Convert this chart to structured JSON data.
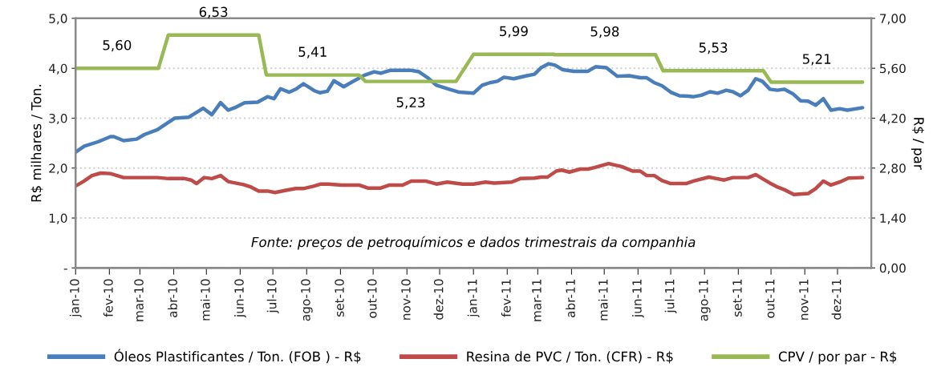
{
  "chart_data": {
    "type": "line",
    "ylabel": "R$ milhares / Ton.",
    "y2label": "R$ / par",
    "xlim": [
      "2010-01-01",
      "2012-01-01"
    ],
    "xticks": [
      {
        "value": "2010-01-01",
        "label": "jan-10"
      },
      {
        "value": "2010-02-01",
        "label": "fev-10"
      },
      {
        "value": "2010-03-01",
        "label": "mar-10"
      },
      {
        "value": "2010-04-01",
        "label": "abr-10"
      },
      {
        "value": "2010-05-01",
        "label": "mai-10"
      },
      {
        "value": "2010-06-01",
        "label": "jun-10"
      },
      {
        "value": "2010-07-01",
        "label": "jul-10"
      },
      {
        "value": "2010-08-01",
        "label": "ago-10"
      },
      {
        "value": "2010-09-01",
        "label": "set-10"
      },
      {
        "value": "2010-10-01",
        "label": "out-10"
      },
      {
        "value": "2010-11-01",
        "label": "nov-10"
      },
      {
        "value": "2010-12-01",
        "label": "dez-10"
      },
      {
        "value": "2011-01-01",
        "label": "jan-11"
      },
      {
        "value": "2011-02-01",
        "label": "fev-11"
      },
      {
        "value": "2011-03-01",
        "label": "mar-11"
      },
      {
        "value": "2011-04-01",
        "label": "abr-11"
      },
      {
        "value": "2011-05-01",
        "label": "mai-11"
      },
      {
        "value": "2011-06-01",
        "label": "jun-11"
      },
      {
        "value": "2011-07-01",
        "label": "jul-11"
      },
      {
        "value": "2011-08-01",
        "label": "ago-11"
      },
      {
        "value": "2011-09-01",
        "label": "set-11"
      },
      {
        "value": "2011-10-01",
        "label": "out-11"
      },
      {
        "value": "2011-11-01",
        "label": "nov-11"
      },
      {
        "value": "2011-12-01",
        "label": "dez-11"
      }
    ],
    "ylim": [
      0,
      5
    ],
    "yticks": [
      {
        "value": 0,
        "label": "-"
      },
      {
        "value": 1,
        "label": "1,0"
      },
      {
        "value": 2,
        "label": "2,0"
      },
      {
        "value": 3,
        "label": "3,0"
      },
      {
        "value": 4,
        "label": "4,0"
      },
      {
        "value": 5,
        "label": "5,0"
      }
    ],
    "y2lim": [
      0,
      7
    ],
    "y2ticks": [
      {
        "value": 0,
        "label": "0,00"
      },
      {
        "value": 1.4,
        "label": "1,40"
      },
      {
        "value": 2.8,
        "label": "2,80"
      },
      {
        "value": 4.2,
        "label": "4,20"
      },
      {
        "value": 5.6,
        "label": "5,60"
      },
      {
        "value": 7,
        "label": "7,00"
      }
    ],
    "grid": "y",
    "legend": "bottom",
    "marker": "none",
    "line_style": "solid",
    "series": [
      {
        "name": "Óleos Plastificantes / Ton. (FOB ) - R$",
        "color": "#4a7ebb",
        "x": [
          "2010-01-01",
          "2010-01-09",
          "2010-01-22",
          "2010-02-02",
          "2010-02-05",
          "2010-02-14",
          "2010-02-26",
          "2010-03-05",
          "2010-03-17",
          "2010-04-02",
          "2010-04-15",
          "2010-04-28",
          "2010-05-06",
          "2010-05-14",
          "2010-05-21",
          "2010-05-27",
          "2010-06-05",
          "2010-06-17",
          "2010-06-26",
          "2010-07-02",
          "2010-07-08",
          "2010-07-16",
          "2010-07-22",
          "2010-07-29",
          "2010-08-08",
          "2010-08-13",
          "2010-08-20",
          "2010-08-26",
          "2010-09-04",
          "2010-09-12",
          "2010-09-23",
          "2010-10-02",
          "2010-10-08",
          "2010-10-17",
          "2010-11-04",
          "2010-11-12",
          "2010-11-20",
          "2010-11-28",
          "2010-12-08",
          "2010-12-19",
          "2011-01-01",
          "2011-01-09",
          "2011-01-16",
          "2011-01-23",
          "2011-01-29",
          "2011-02-07",
          "2011-02-19",
          "2011-02-26",
          "2011-03-04",
          "2011-03-11",
          "2011-03-17",
          "2011-03-24",
          "2011-04-03",
          "2011-04-16",
          "2011-04-23",
          "2011-05-03",
          "2011-05-13",
          "2011-05-24",
          "2011-06-03",
          "2011-06-09",
          "2011-06-16",
          "2011-06-23",
          "2011-07-01",
          "2011-07-09",
          "2011-07-17",
          "2011-07-22",
          "2011-07-29",
          "2011-08-06",
          "2011-08-13",
          "2011-08-21",
          "2011-08-27",
          "2011-09-03",
          "2011-09-10",
          "2011-09-17",
          "2011-09-23",
          "2011-09-30",
          "2011-10-07",
          "2011-10-13",
          "2011-10-21",
          "2011-10-28",
          "2011-11-04",
          "2011-11-11",
          "2011-11-18",
          "2011-11-25",
          "2011-12-03",
          "2011-12-10",
          "2011-12-24"
        ],
        "values": [
          2.32,
          2.44,
          2.53,
          2.63,
          2.63,
          2.55,
          2.58,
          2.67,
          2.77,
          3.0,
          3.02,
          3.2,
          3.07,
          3.31,
          3.16,
          3.21,
          3.31,
          3.32,
          3.43,
          3.39,
          3.59,
          3.52,
          3.58,
          3.69,
          3.55,
          3.51,
          3.54,
          3.75,
          3.63,
          3.73,
          3.86,
          3.93,
          3.9,
          3.96,
          3.96,
          3.93,
          3.81,
          3.66,
          3.59,
          3.52,
          3.5,
          3.66,
          3.71,
          3.74,
          3.82,
          3.79,
          3.85,
          3.88,
          4.01,
          4.09,
          4.06,
          3.97,
          3.94,
          3.94,
          4.03,
          4.01,
          3.84,
          3.85,
          3.81,
          3.81,
          3.71,
          3.65,
          3.52,
          3.45,
          3.44,
          3.43,
          3.46,
          3.53,
          3.5,
          3.56,
          3.53,
          3.45,
          3.56,
          3.79,
          3.74,
          3.58,
          3.56,
          3.58,
          3.49,
          3.35,
          3.34,
          3.26,
          3.39,
          3.16,
          3.19,
          3.16,
          3.21
        ]
      },
      {
        "name": "Resina de PVC / Ton. (CFR) - R$",
        "color": "#be4b48",
        "x": [
          "2010-01-01",
          "2010-01-08",
          "2010-01-16",
          "2010-01-24",
          "2010-02-02",
          "2010-02-14",
          "2010-03-17",
          "2010-03-27",
          "2010-04-11",
          "2010-04-17",
          "2010-04-22",
          "2010-04-29",
          "2010-05-06",
          "2010-05-14",
          "2010-05-21",
          "2010-06-04",
          "2010-06-11",
          "2010-06-18",
          "2010-06-26",
          "2010-07-03",
          "2010-07-12",
          "2010-07-22",
          "2010-07-29",
          "2010-08-08",
          "2010-08-14",
          "2010-08-21",
          "2010-09-02",
          "2010-09-18",
          "2010-09-26",
          "2010-10-08",
          "2010-10-16",
          "2010-10-28",
          "2010-11-05",
          "2010-11-18",
          "2010-11-28",
          "2010-12-08",
          "2010-12-22",
          "2011-01-01",
          "2011-01-12",
          "2011-01-20",
          "2011-02-05",
          "2011-02-13",
          "2011-02-26",
          "2011-03-04",
          "2011-03-10",
          "2011-03-18",
          "2011-03-23",
          "2011-03-30",
          "2011-04-09",
          "2011-04-16",
          "2011-04-22",
          "2011-05-05",
          "2011-05-17",
          "2011-05-27",
          "2011-06-03",
          "2011-06-09",
          "2011-06-16",
          "2011-06-23",
          "2011-07-01",
          "2011-07-15",
          "2011-07-22",
          "2011-08-05",
          "2011-08-12",
          "2011-08-19",
          "2011-08-27",
          "2011-09-10",
          "2011-09-17",
          "2011-09-23",
          "2011-09-30",
          "2011-10-07",
          "2011-10-14",
          "2011-10-22",
          "2011-11-04",
          "2011-11-11",
          "2011-11-18",
          "2011-11-25",
          "2011-12-03",
          "2011-12-11",
          "2011-12-24"
        ],
        "values": [
          1.64,
          1.73,
          1.85,
          1.9,
          1.89,
          1.81,
          1.81,
          1.79,
          1.79,
          1.76,
          1.69,
          1.81,
          1.79,
          1.85,
          1.73,
          1.67,
          1.62,
          1.54,
          1.54,
          1.51,
          1.55,
          1.59,
          1.59,
          1.64,
          1.68,
          1.68,
          1.66,
          1.66,
          1.6,
          1.6,
          1.66,
          1.66,
          1.74,
          1.74,
          1.68,
          1.72,
          1.68,
          1.68,
          1.72,
          1.7,
          1.72,
          1.79,
          1.8,
          1.82,
          1.82,
          1.94,
          1.96,
          1.92,
          1.98,
          1.98,
          2.01,
          2.09,
          2.03,
          1.94,
          1.94,
          1.85,
          1.85,
          1.75,
          1.69,
          1.69,
          1.74,
          1.82,
          1.79,
          1.76,
          1.81,
          1.81,
          1.87,
          1.79,
          1.7,
          1.62,
          1.56,
          1.47,
          1.49,
          1.59,
          1.74,
          1.66,
          1.72,
          1.8,
          1.81
        ]
      },
      {
        "name": "CPV / por par - R$",
        "color": "#98b954",
        "axis": "y2",
        "x": [
          "2010-01-01",
          "2010-03-18",
          "2010-03-27",
          "2010-06-18",
          "2010-06-25",
          "2010-09-18",
          "2010-09-24",
          "2010-12-16",
          "2011-01-01",
          "2011-03-16",
          "2011-03-16",
          "2011-06-17",
          "2011-06-24",
          "2011-09-24",
          "2011-10-01",
          "2011-12-24"
        ],
        "values": [
          5.6,
          5.6,
          6.53,
          6.53,
          5.41,
          5.41,
          5.23,
          5.23,
          5.99,
          5.99,
          5.98,
          5.98,
          5.53,
          5.53,
          5.21,
          5.21
        ]
      }
    ],
    "annotations": [
      "5,60",
      "6,53",
      "5,41",
      "5,23",
      "5,99",
      "5,98",
      "5,53",
      "5,21",
      "Fonte: preços de petroquímicos e dados trimestrais da companhia"
    ]
  }
}
